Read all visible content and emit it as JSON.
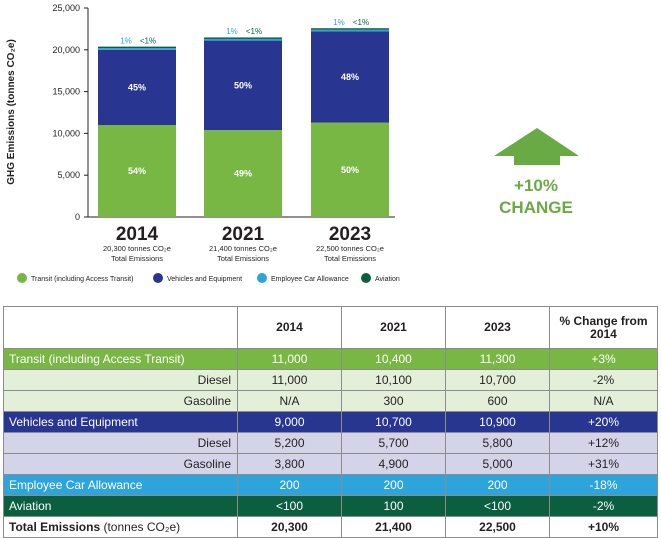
{
  "chart_data": {
    "type": "bar",
    "stacked": true,
    "ylabel": "GHG Emissions (tonnes CO₂e)",
    "ylim": [
      0,
      25000
    ],
    "yticks": [
      0,
      5000,
      10000,
      15000,
      20000,
      25000
    ],
    "ytick_labels": [
      "0",
      "5,000",
      "10,000",
      "15,000",
      "20,000",
      "25,000"
    ],
    "categories": [
      "2014",
      "2021",
      "2023"
    ],
    "category_captions": [
      {
        "line1": "20,300 tonnes CO₂e",
        "line2": "Total Emissions"
      },
      {
        "line1": "21,400 tonnes CO₂e",
        "line2": "Total Emissions"
      },
      {
        "line1": "22,500 tonnes CO₂e",
        "line2": "Total Emissions"
      }
    ],
    "series": [
      {
        "name": "Transit (including Access Transit)",
        "color": "#78b743",
        "values": [
          11000,
          10400,
          11300
        ],
        "labels": [
          "54%",
          "49%",
          "50%"
        ]
      },
      {
        "name": "Vehicles and Equipment",
        "color": "#283591",
        "values": [
          9000,
          10700,
          10900
        ],
        "labels": [
          "45%",
          "50%",
          "48%"
        ]
      },
      {
        "name": "Employee Car Allowance",
        "color": "#2da4dc",
        "values": [
          200,
          200,
          200
        ],
        "labels": [
          "1%",
          "1%",
          "1%"
        ]
      },
      {
        "name": "Aviation",
        "color": "#0b5f3f",
        "values": [
          100,
          100,
          100
        ],
        "labels": [
          "<1%",
          "<1%",
          "<1%"
        ]
      }
    ],
    "change": {
      "value": "+10%",
      "label": "CHANGE",
      "color": "#6aaa44"
    }
  },
  "table": {
    "headers": [
      "",
      "2014",
      "2021",
      "2023",
      "% Change from 2014"
    ],
    "rows": [
      {
        "kind": "transit",
        "label": "Transit (including Access Transit)",
        "values": [
          "11,000",
          "10,400",
          "11,300",
          "+3%"
        ]
      },
      {
        "kind": "transit-sub",
        "label": "Diesel",
        "values": [
          "11,000",
          "10,100",
          "10,700",
          "-2%"
        ]
      },
      {
        "kind": "transit-sub",
        "label": "Gasoline",
        "values": [
          "N/A",
          "300",
          "600",
          "N/A"
        ]
      },
      {
        "kind": "veh",
        "label": "Vehicles and Equipment",
        "values": [
          "9,000",
          "10,700",
          "10,900",
          "+20%"
        ]
      },
      {
        "kind": "veh-sub",
        "label": "Diesel",
        "values": [
          "5,200",
          "5,700",
          "5,800",
          "+12%"
        ]
      },
      {
        "kind": "veh-sub",
        "label": "Gasoline",
        "values": [
          "3,800",
          "4,900",
          "5,000",
          "+31%"
        ]
      },
      {
        "kind": "emp",
        "label": "Employee Car Allowance",
        "values": [
          "200",
          "200",
          "200",
          "-18%"
        ]
      },
      {
        "kind": "avi",
        "label": "Aviation",
        "values": [
          "<100",
          "100",
          "<100",
          "-2%"
        ]
      }
    ],
    "total": {
      "label_bold": "Total Emissions",
      "label_rest": " (tonnes CO₂e)",
      "values": [
        "20,300",
        "21,400",
        "22,500",
        "+10%"
      ]
    }
  }
}
